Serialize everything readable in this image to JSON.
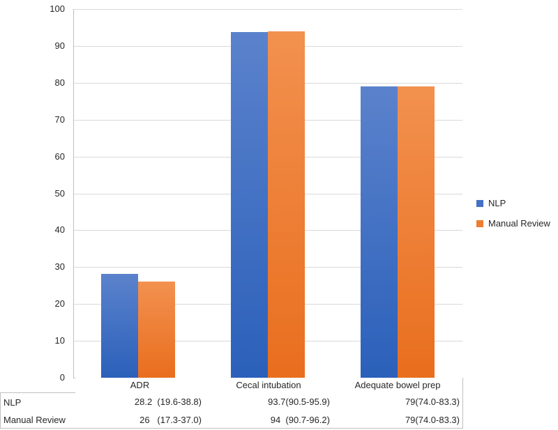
{
  "chart_data": {
    "type": "bar",
    "categories": [
      "ADR",
      "Cecal intubation",
      "Adequate bowel prep"
    ],
    "series": [
      {
        "name": "NLP",
        "values": [
          28.2,
          93.7,
          79
        ],
        "legend_color": "#4472c4",
        "gradient_top": "#5b82cc",
        "gradient_bottom": "#2b60ba"
      },
      {
        "name": "Manual Review",
        "values": [
          26,
          94,
          79
        ],
        "legend_color": "#ed7d31",
        "gradient_top": "#f2914f",
        "gradient_bottom": "#e96e1e"
      }
    ],
    "title": "",
    "xlabel": "",
    "ylabel": "",
    "ylim": [
      0,
      100
    ],
    "y_ticks": [
      0,
      10,
      20,
      30,
      40,
      50,
      60,
      70,
      80,
      90,
      100
    ],
    "grid": true,
    "legend_position": "right",
    "data_table": {
      "rows": [
        {
          "label": "NLP",
          "cells": [
            "28.2  (19.6-38.8)",
            "93.7(90.5-95.9)",
            "79(74.0-83.3)"
          ]
        },
        {
          "label": "Manual Review",
          "cells": [
            "26   (17.3-37.0)",
            "94  (90.7-96.2)",
            "79(74.0-83.3)"
          ]
        }
      ]
    }
  },
  "legend": {
    "items": [
      {
        "label": "NLP"
      },
      {
        "label": "Manual Review"
      }
    ]
  }
}
